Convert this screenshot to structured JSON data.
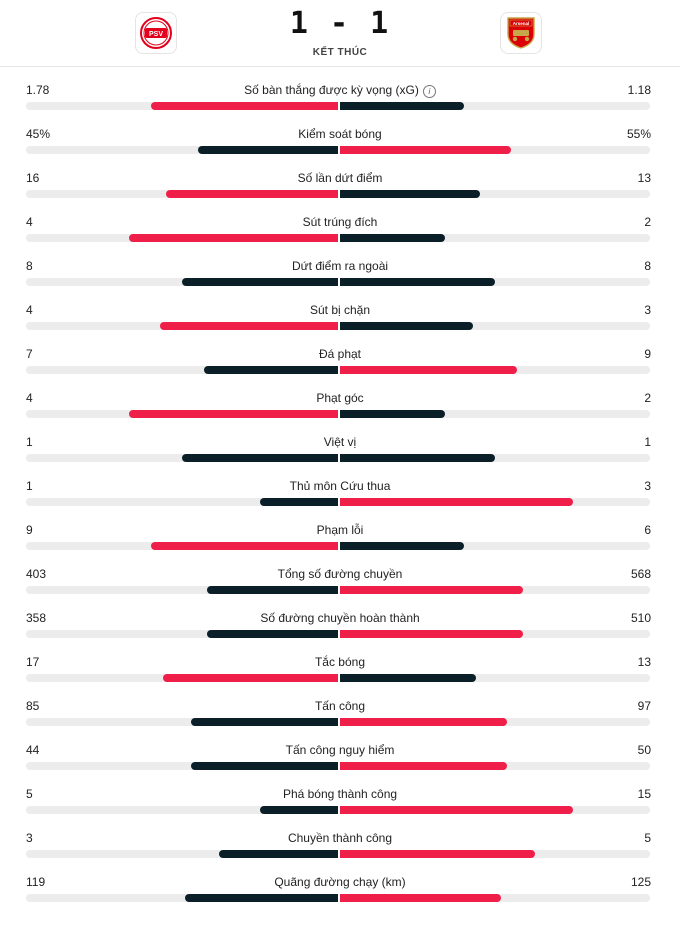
{
  "match": {
    "score": "1 - 1",
    "status": "KẾT THÚC",
    "home": {
      "name": "PSV",
      "badge_text": "PSV"
    },
    "away": {
      "name": "Arsenal",
      "badge_text": "Arsenal"
    }
  },
  "colors": {
    "red": "#ef1f49",
    "dark": "#0b1f28",
    "track": "#ececec"
  },
  "stats": [
    {
      "label": "Số bàn thắng được kỳ vọng (xG)",
      "home": "1.78",
      "away": "1.18",
      "home_frac": 0.6,
      "away_frac": 0.4,
      "leader": "home",
      "info_icon": true
    },
    {
      "label": "Kiểm soát bóng",
      "home": "45%",
      "away": "55%",
      "home_frac": 0.45,
      "away_frac": 0.55,
      "leader": "away"
    },
    {
      "label": "Số lần dứt điểm",
      "home": "16",
      "away": "13",
      "home_frac": 0.55,
      "away_frac": 0.45,
      "leader": "home"
    },
    {
      "label": "Sút trúng đích",
      "home": "4",
      "away": "2",
      "home_frac": 0.67,
      "away_frac": 0.34,
      "leader": "home"
    },
    {
      "label": "Dứt điểm ra ngoài",
      "home": "8",
      "away": "8",
      "home_frac": 0.5,
      "away_frac": 0.5,
      "leader": "none"
    },
    {
      "label": "Sút bị chặn",
      "home": "4",
      "away": "3",
      "home_frac": 0.57,
      "away_frac": 0.43,
      "leader": "home"
    },
    {
      "label": "Đá phạt",
      "home": "7",
      "away": "9",
      "home_frac": 0.43,
      "away_frac": 0.57,
      "leader": "away"
    },
    {
      "label": "Phạt góc",
      "home": "4",
      "away": "2",
      "home_frac": 0.67,
      "away_frac": 0.34,
      "leader": "home"
    },
    {
      "label": "Việt vị",
      "home": "1",
      "away": "1",
      "home_frac": 0.5,
      "away_frac": 0.5,
      "leader": "none"
    },
    {
      "label": "Thủ môn Cứu thua",
      "home": "1",
      "away": "3",
      "home_frac": 0.25,
      "away_frac": 0.75,
      "leader": "away"
    },
    {
      "label": "Phạm lỗi",
      "home": "9",
      "away": "6",
      "home_frac": 0.6,
      "away_frac": 0.4,
      "leader": "home"
    },
    {
      "label": "Tổng số đường chuyền",
      "home": "403",
      "away": "568",
      "home_frac": 0.42,
      "away_frac": 0.59,
      "leader": "away"
    },
    {
      "label": "Số đường chuyền hoàn thành",
      "home": "358",
      "away": "510",
      "home_frac": 0.42,
      "away_frac": 0.59,
      "leader": "away"
    },
    {
      "label": "Tắc bóng",
      "home": "17",
      "away": "13",
      "home_frac": 0.56,
      "away_frac": 0.44,
      "leader": "home"
    },
    {
      "label": "Tấn công",
      "home": "85",
      "away": "97",
      "home_frac": 0.47,
      "away_frac": 0.54,
      "leader": "away"
    },
    {
      "label": "Tấn công nguy hiểm",
      "home": "44",
      "away": "50",
      "home_frac": 0.47,
      "away_frac": 0.54,
      "leader": "away"
    },
    {
      "label": "Phá bóng thành công",
      "home": "5",
      "away": "15",
      "home_frac": 0.25,
      "away_frac": 0.75,
      "leader": "away"
    },
    {
      "label": "Chuyền thành công",
      "home": "3",
      "away": "5",
      "home_frac": 0.38,
      "away_frac": 0.63,
      "leader": "away"
    },
    {
      "label": "Quãng đường chạy (km)",
      "home": "119",
      "away": "125",
      "home_frac": 0.49,
      "away_frac": 0.52,
      "leader": "away"
    }
  ]
}
